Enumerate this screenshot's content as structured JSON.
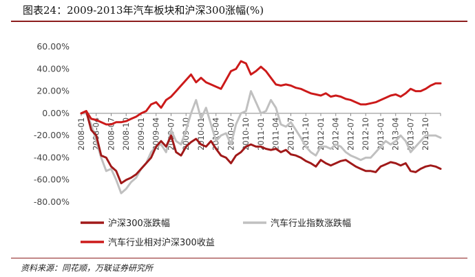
{
  "title": "图表24：2009-2013年汽车板块和沪深300涨幅(%)",
  "source": "资料来源：同花顺，万联证券研究所",
  "chart_data": {
    "type": "line",
    "title": "图表24：2009-2013年汽车板块和沪深300涨幅(%)",
    "ylim": [
      -80,
      60
    ],
    "yticks": [
      60,
      40,
      20,
      0,
      -20,
      -40,
      -60,
      -80
    ],
    "ytick_labels": [
      "60.00%",
      "40.00%",
      "20.00%",
      "0.00%",
      "-20.00%",
      "-40.00%",
      "-60.00%",
      "-80.00%"
    ],
    "xticks": [
      "2008-01",
      "2008-04",
      "2008-07",
      "2008-10",
      "2009-01",
      "2009-04",
      "2009-07",
      "2009-10",
      "2010-01",
      "2010-04",
      "2010-07",
      "2010-10",
      "2011-01",
      "2011-04",
      "2011-07",
      "2011-10",
      "2012-01",
      "2012-04",
      "2012-07",
      "2012-10",
      "2013-01",
      "2013-04",
      "2013-07",
      "2013-10"
    ],
    "grid": false,
    "legend_position": "bottom",
    "series": [
      {
        "name": "沪深300涨跌幅",
        "color": "#a01919",
        "values": [
          0,
          2,
          -15,
          -20,
          -38,
          -40,
          -48,
          -52,
          -63,
          -60,
          -58,
          -55,
          -50,
          -45,
          -40,
          -30,
          -25,
          -30,
          -20,
          -35,
          -38,
          -30,
          -26,
          -23,
          -28,
          -30,
          -25,
          -32,
          -38,
          -40,
          -45,
          -38,
          -35,
          -30,
          -28,
          -30,
          -30,
          -32,
          -33,
          -32,
          -35,
          -33,
          -37,
          -38,
          -40,
          -43,
          -45,
          -48,
          -42,
          -45,
          -47,
          -45,
          -43,
          -42,
          -45,
          -48,
          -50,
          -52,
          -52,
          -53,
          -48,
          -46,
          -44,
          -45,
          -47,
          -45,
          -52,
          -53,
          -50,
          -48,
          -47,
          -48,
          -50
        ]
      },
      {
        "name": "汽车行业指数涨跌幅",
        "color": "#c0c0c0",
        "values": [
          0,
          0,
          -10,
          -25,
          -40,
          -52,
          -50,
          -60,
          -72,
          -68,
          -62,
          -58,
          -50,
          -45,
          -35,
          -30,
          -28,
          -35,
          -15,
          -25,
          -28,
          -15,
          0,
          12,
          -5,
          5,
          -10,
          -25,
          -20,
          -18,
          -28,
          -10,
          0,
          2,
          20,
          10,
          0,
          2,
          12,
          5,
          -10,
          -12,
          -8,
          -15,
          -22,
          -30,
          -35,
          -38,
          -30,
          -30,
          -32,
          -28,
          -30,
          -35,
          -38,
          -40,
          -42,
          -40,
          -40,
          -35,
          -30,
          -25,
          -28,
          -25,
          -20,
          -25,
          -35,
          -30,
          -25,
          -20,
          -20,
          -20,
          -22
        ]
      },
      {
        "name": "汽车行业相对沪深300收益",
        "color": "#cc1a1a",
        "values": [
          0,
          2,
          -5,
          -6,
          -8,
          -10,
          -10,
          -8,
          -8,
          -7,
          -5,
          -3,
          0,
          2,
          8,
          10,
          5,
          12,
          15,
          20,
          25,
          30,
          35,
          28,
          32,
          28,
          26,
          24,
          22,
          30,
          38,
          40,
          47,
          45,
          35,
          38,
          42,
          38,
          32,
          26,
          25,
          26,
          25,
          23,
          22,
          20,
          18,
          17,
          16,
          18,
          15,
          16,
          15,
          13,
          12,
          10,
          8,
          8,
          9,
          10,
          12,
          14,
          16,
          17,
          15,
          18,
          22,
          20,
          20,
          22,
          25,
          27,
          27
        ]
      }
    ]
  }
}
